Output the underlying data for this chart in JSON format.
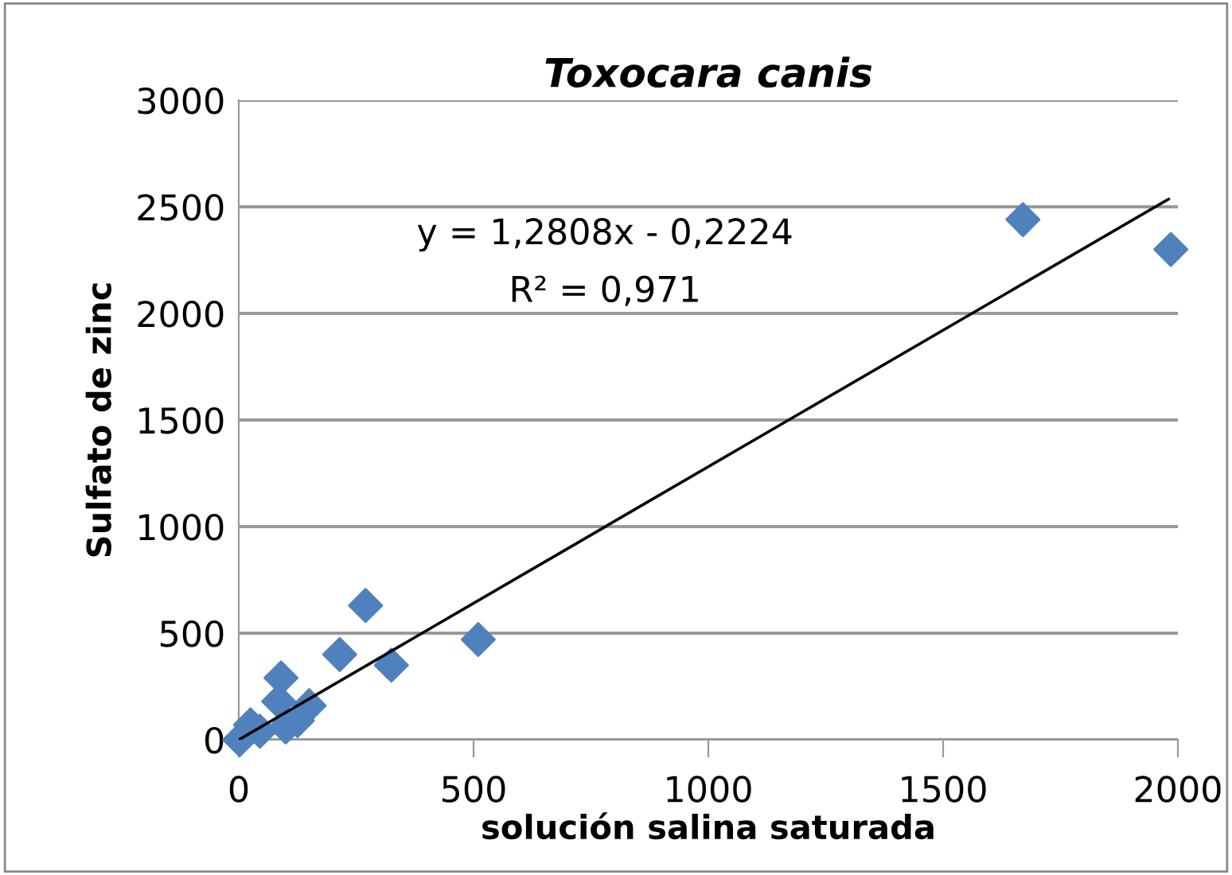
{
  "chart_data": {
    "type": "scatter",
    "title": "Toxocara canis",
    "xlabel": "solución salina saturada",
    "ylabel": "Sulfato de zinc",
    "xlim": [
      0,
      2000
    ],
    "xticks": [
      0,
      500,
      1000,
      1500,
      2000
    ],
    "ylim": [
      0,
      3000
    ],
    "yticks": [
      0,
      500,
      1000,
      1500,
      2000,
      2500,
      3000
    ],
    "grid": "y",
    "marker": "diamond",
    "annotations": [
      "y = 1,2808x - 0,2224",
      "R² = 0,971"
    ],
    "series": [
      {
        "color": "#4f81bd",
        "x": [
          1670,
          1985,
          510,
          270,
          325,
          215,
          90,
          85,
          150,
          125,
          100,
          25,
          45,
          2
        ],
        "values": [
          2440,
          2300,
          470,
          630,
          350,
          400,
          290,
          180,
          160,
          90,
          60,
          70,
          40,
          0
        ]
      },
      {
        "type": "line",
        "color": "#000000",
        "marker": "none",
        "x": [
          0,
          1980
        ],
        "values": [
          0,
          2536
        ]
      }
    ]
  }
}
